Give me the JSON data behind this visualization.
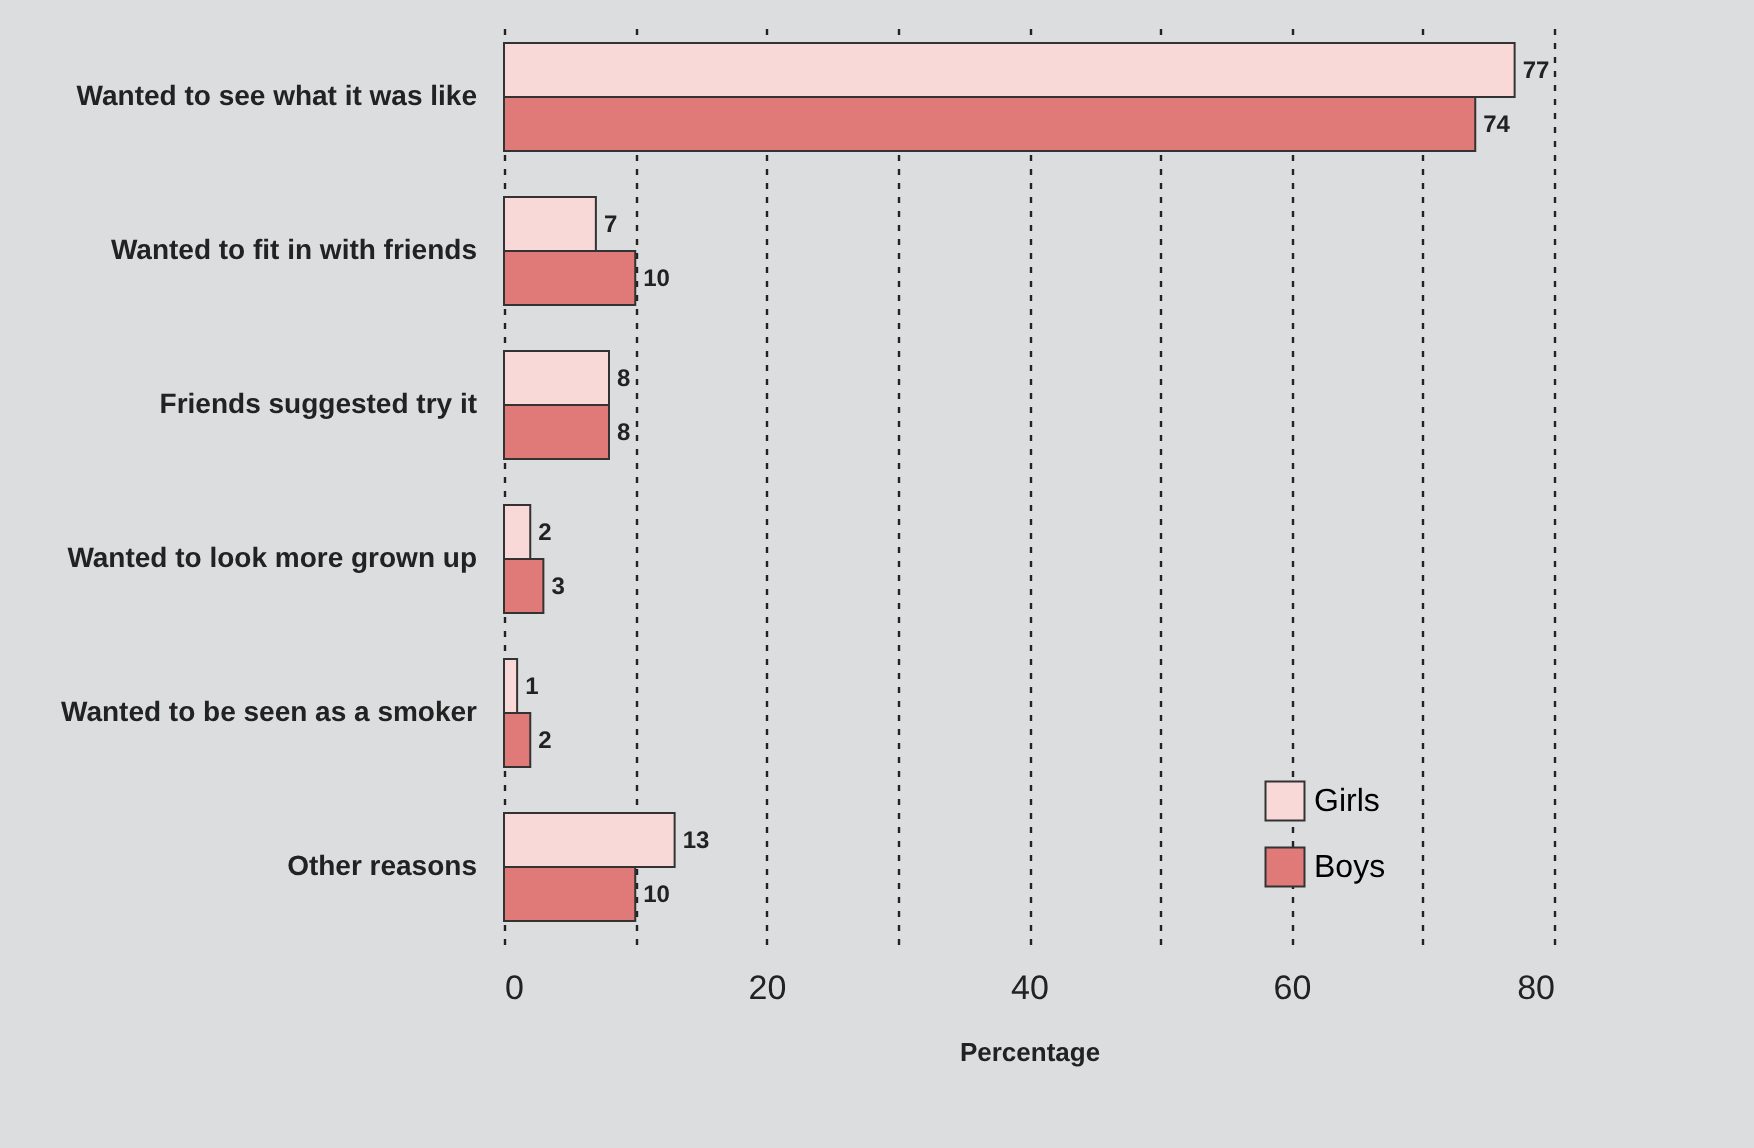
{
  "chart_data": {
    "type": "bar",
    "orientation": "horizontal",
    "xlabel": "Percentage",
    "categories": [
      "Wanted to see what it was like",
      "Wanted to fit in with friends",
      "Friends suggested try it",
      "Wanted to look more grown up",
      "Wanted to be seen as a smoker",
      "Other reasons"
    ],
    "series": [
      {
        "name": "Girls",
        "color": "#f9d9d8",
        "values": [
          77,
          7,
          8,
          2,
          1,
          13
        ]
      },
      {
        "name": "Boys",
        "color": "#e07a78",
        "values": [
          74,
          10,
          8,
          3,
          2,
          10
        ]
      }
    ],
    "xlim": [
      0,
      80
    ],
    "xticks": [
      0,
      {
        "value": 10,
        "label": null
      },
      20,
      {
        "value": 30,
        "label": null
      },
      40,
      {
        "value": 50,
        "label": null
      },
      60,
      {
        "value": 70,
        "label": null
      },
      80
    ],
    "grid": "x",
    "legend": "bottom right",
    "data_labels": true
  }
}
